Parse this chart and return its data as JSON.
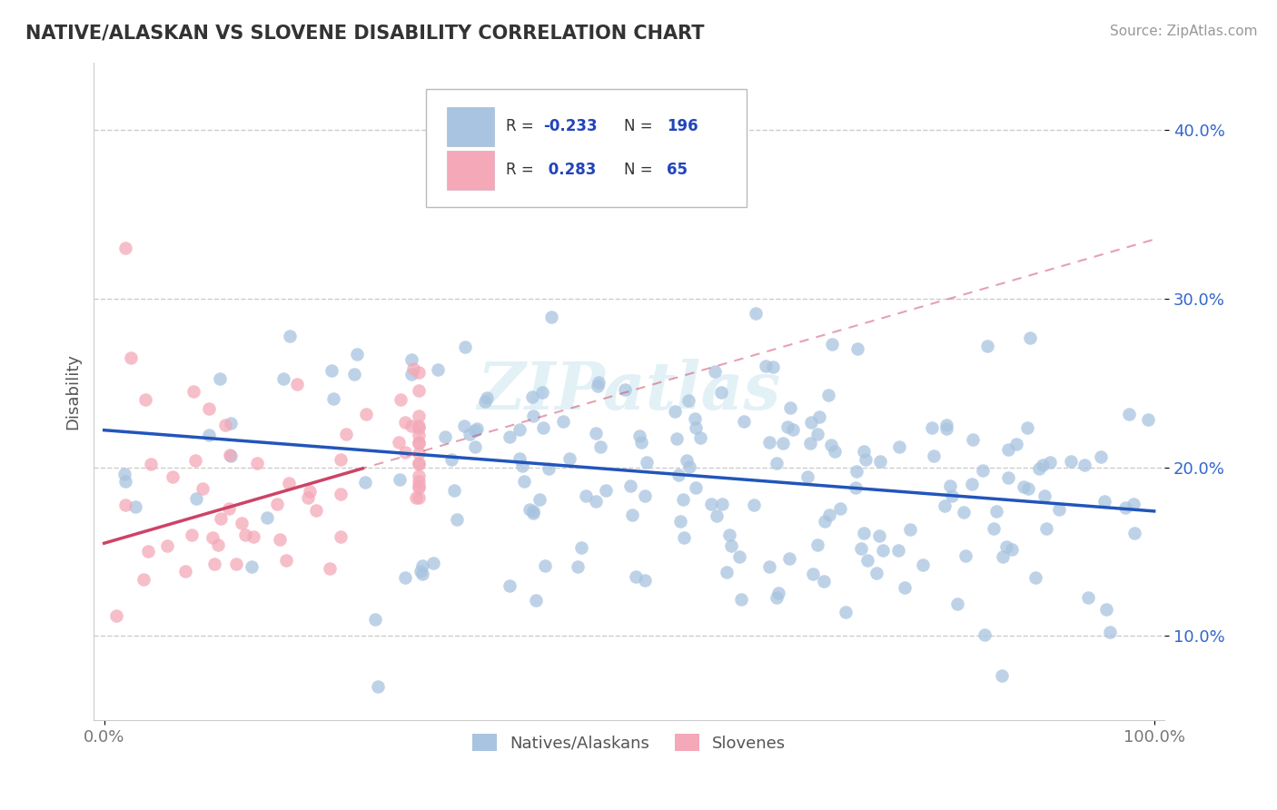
{
  "title": "NATIVE/ALASKAN VS SLOVENE DISABILITY CORRELATION CHART",
  "source": "Source: ZipAtlas.com",
  "ylabel": "Disability",
  "xlim": [
    0.0,
    1.0
  ],
  "ylim": [
    0.05,
    0.44
  ],
  "yticks": [
    0.1,
    0.2,
    0.3,
    0.4
  ],
  "ytick_labels": [
    "10.0%",
    "20.0%",
    "30.0%",
    "40.0%"
  ],
  "xticks": [
    0.0,
    1.0
  ],
  "xtick_labels": [
    "0.0%",
    "100.0%"
  ],
  "blue_R": -0.233,
  "blue_N": 196,
  "pink_R": 0.283,
  "pink_N": 65,
  "blue_color": "#a8c4e0",
  "pink_color": "#f4a8b8",
  "blue_line_color": "#2255bb",
  "pink_line_color": "#cc4466",
  "watermark": "ZIPatlas",
  "legend_R_color": "#2244bb",
  "title_color": "#333333",
  "background_color": "#ffffff",
  "grid_color": "#cccccc",
  "seed": 42,
  "blue_intercept": 0.222,
  "blue_slope": -0.048,
  "pink_intercept": 0.155,
  "pink_slope": 0.18
}
